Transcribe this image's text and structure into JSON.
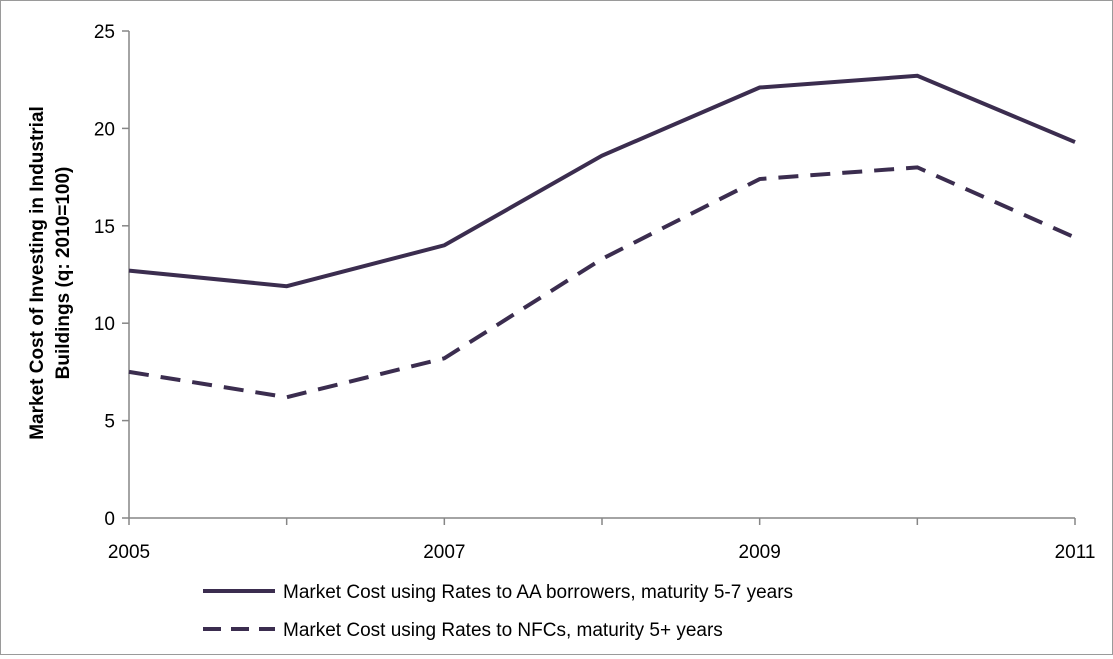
{
  "chart_data": {
    "type": "line",
    "title": "",
    "ylabel": [
      "Market Cost of Investing in Industrial",
      "Buildings (q: 2010=100)"
    ],
    "xlabel": "",
    "x": [
      2005,
      2006,
      2007,
      2008,
      2009,
      2010,
      2011
    ],
    "x_tick_labels": [
      "2005",
      "2007",
      "2009",
      "2011"
    ],
    "x_tick_values": [
      2005,
      2007,
      2009,
      2011
    ],
    "ylim": [
      0,
      25
    ],
    "y_ticks": [
      0,
      5,
      10,
      15,
      20,
      25
    ],
    "grid": false,
    "legend_position": "bottom",
    "series": [
      {
        "name": "Market Cost using Rates to AA borrowers, maturity 5-7 years",
        "values": [
          12.7,
          11.9,
          14.0,
          18.6,
          22.1,
          22.7,
          19.3
        ],
        "color": "#3b2d4f",
        "style": "solid"
      },
      {
        "name": "Market Cost using Rates to NFCs, maturity 5+ years",
        "values": [
          7.5,
          6.2,
          8.2,
          13.3,
          17.4,
          18.0,
          14.4
        ],
        "color": "#3b2d4f",
        "style": "dashed"
      }
    ]
  }
}
